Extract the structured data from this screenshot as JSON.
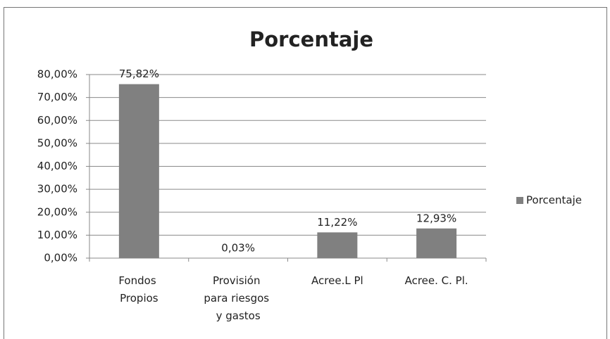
{
  "chart_data": {
    "type": "bar",
    "title": "Porcentaje",
    "categories": [
      "Fondos Propios",
      "Provisión para riesgos y gastos",
      "Acree.L Pl",
      "Acree. C. Pl."
    ],
    "series": [
      {
        "name": "Porcentaje",
        "color": "#808080",
        "values": [
          75.82,
          0.03,
          11.22,
          12.93
        ],
        "value_labels": [
          "75,82%",
          "0,03%",
          "11,22%",
          "12,93%"
        ]
      }
    ],
    "ylim": [
      0,
      80
    ],
    "yticks": [
      {
        "value": 0,
        "label": "0,00%"
      },
      {
        "value": 10,
        "label": "10,00%"
      },
      {
        "value": 20,
        "label": "20,00%"
      },
      {
        "value": 30,
        "label": "30,00%"
      },
      {
        "value": 40,
        "label": "40,00%"
      },
      {
        "value": 50,
        "label": "50,00%"
      },
      {
        "value": 60,
        "label": "60,00%"
      },
      {
        "value": 70,
        "label": "70,00%"
      },
      {
        "value": 80,
        "label": "80,00%"
      }
    ],
    "grid": true,
    "legend": "right"
  }
}
